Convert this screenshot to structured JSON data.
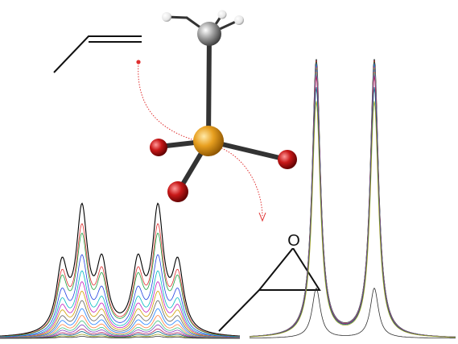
{
  "epoxide": {
    "oxygen_label": "O"
  },
  "molecule": {
    "center_atom_color": "#E8A020",
    "oxygen_atom_color": "#C81818",
    "carbon_atom_color": "#8E8E8E",
    "hydrogen_atom_color": "#F2F2F2",
    "bond_color": "#333333"
  },
  "reaction_arrow": {
    "color": "#E03030"
  },
  "spectra": {
    "trace_colors": [
      "#000000",
      "#e03030",
      "#20a040",
      "#2040e0",
      "#00b8c0",
      "#c020c0",
      "#d0a000",
      "#606060",
      "#2080ff",
      "#ff8040",
      "#40c080",
      "#8040c0",
      "#b02060",
      "#006080",
      "#a0a020",
      "#303030"
    ],
    "left_multiplet": {
      "peak_positions": [
        0.0,
        0.5,
        1.0,
        1.9,
        2.4,
        2.9
      ],
      "relative_intensities": [
        0.55,
        1.0,
        0.55,
        0.55,
        1.0,
        0.55
      ],
      "trace_scales": [
        1.0,
        0.85,
        0.78,
        0.62,
        0.5,
        0.42,
        0.35,
        0.28,
        0.22,
        0.17,
        0.13,
        0.1,
        0.07,
        0.05,
        0.03,
        0.015
      ]
    },
    "right_doublet": {
      "peak_positions": [
        0.0,
        1.0
      ],
      "trace_scales": [
        1.0,
        0.995,
        0.99,
        0.985,
        0.98,
        0.975,
        0.97,
        0.965,
        0.96,
        0.955,
        0.95,
        0.945,
        0.94,
        0.9,
        0.85,
        0.18
      ]
    }
  }
}
